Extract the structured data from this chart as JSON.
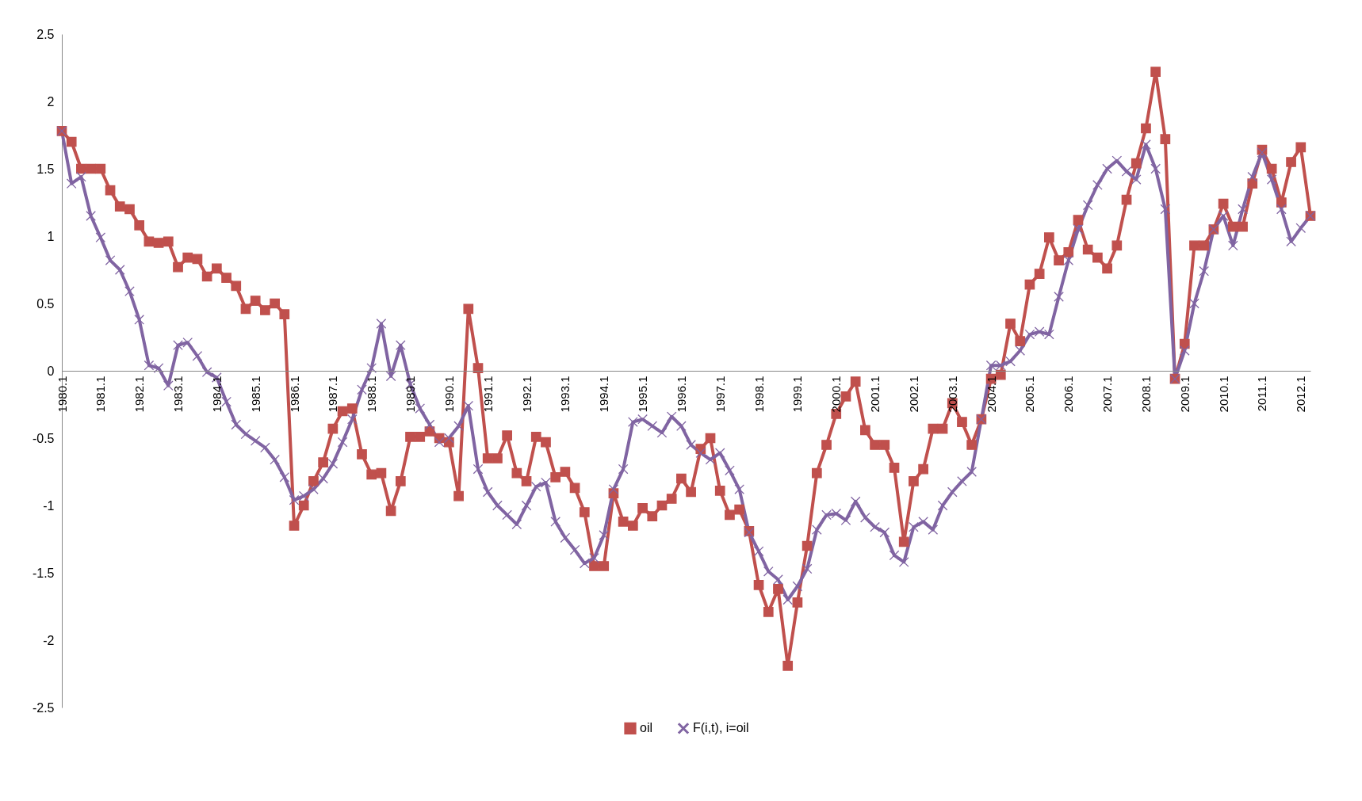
{
  "chart_data": {
    "type": "line",
    "categories": [
      "1980.1",
      null,
      null,
      null,
      "1981.1",
      null,
      null,
      null,
      "1982.1",
      null,
      null,
      null,
      "1983.1",
      null,
      null,
      null,
      "1984.1",
      null,
      null,
      null,
      "1985.1",
      null,
      null,
      null,
      "1986.1",
      null,
      null,
      null,
      "1987.1",
      null,
      null,
      null,
      "1988.1",
      null,
      null,
      null,
      "1989.1",
      null,
      null,
      null,
      "1990.1",
      null,
      null,
      null,
      "1991.1",
      null,
      null,
      null,
      "1992.1",
      null,
      null,
      null,
      "1993.1",
      null,
      null,
      null,
      "1994.1",
      null,
      null,
      null,
      "1995.1",
      null,
      null,
      null,
      "1996.1",
      null,
      null,
      null,
      "1997.1",
      null,
      null,
      null,
      "1998.1",
      null,
      null,
      null,
      "1999.1",
      null,
      null,
      null,
      "2000.1",
      null,
      null,
      null,
      "2001.1",
      null,
      null,
      null,
      "2002.1",
      null,
      null,
      null,
      "2003.1",
      null,
      null,
      null,
      "2004.1",
      null,
      null,
      null,
      "2005.1",
      null,
      null,
      null,
      "2006.1",
      null,
      null,
      null,
      "2007.1",
      null,
      null,
      null,
      "2008.1",
      null,
      null,
      null,
      "2009.1",
      null,
      null,
      null,
      "2010.1",
      null,
      null,
      null,
      "2011.1",
      null,
      null,
      null,
      "2012.1",
      null
    ],
    "series": [
      {
        "name": "oil",
        "color": "#c0504d",
        "marker": "square",
        "values": [
          1.78,
          1.7,
          1.5,
          1.5,
          1.5,
          1.34,
          1.22,
          1.2,
          1.08,
          0.96,
          0.95,
          0.96,
          0.77,
          0.84,
          0.83,
          0.7,
          0.76,
          0.69,
          0.63,
          0.46,
          0.52,
          0.45,
          0.5,
          0.42,
          -1.15,
          -1.0,
          -0.82,
          -0.68,
          -0.43,
          -0.3,
          -0.28,
          -0.62,
          -0.77,
          -0.76,
          -1.04,
          -0.82,
          -0.49,
          -0.49,
          -0.45,
          -0.5,
          -0.53,
          -0.93,
          0.46,
          0.02,
          -0.65,
          -0.65,
          -0.48,
          -0.76,
          -0.82,
          -0.49,
          -0.53,
          -0.79,
          -0.75,
          -0.87,
          -1.05,
          -1.45,
          -1.45,
          -0.91,
          -1.12,
          -1.15,
          -1.02,
          -1.08,
          -1.0,
          -0.95,
          -0.8,
          -0.9,
          -0.58,
          -0.5,
          -0.89,
          -1.07,
          -1.03,
          -1.19,
          -1.59,
          -1.79,
          -1.62,
          -2.19,
          -1.72,
          -1.3,
          -0.76,
          -0.55,
          -0.32,
          -0.19,
          -0.08,
          -0.44,
          -0.55,
          -0.55,
          -0.72,
          -1.27,
          -0.82,
          -0.73,
          -0.43,
          -0.43,
          -0.24,
          -0.38,
          -0.55,
          -0.36,
          -0.06,
          -0.03,
          0.35,
          0.22,
          0.64,
          0.72,
          0.99,
          0.82,
          0.88,
          1.12,
          0.9,
          0.84,
          0.76,
          0.93,
          1.27,
          1.54,
          1.8,
          2.22,
          1.72,
          -0.06,
          0.2,
          0.93,
          0.93,
          1.05,
          1.24,
          1.07,
          1.07,
          1.39,
          1.64,
          1.5,
          1.25,
          1.55,
          1.66,
          1.15
        ]
      },
      {
        "name": "F(i,t), i=oil",
        "color": "#8064a2",
        "marker": "cross",
        "values": [
          1.78,
          1.39,
          1.44,
          1.15,
          0.99,
          0.82,
          0.75,
          0.59,
          0.38,
          0.04,
          0.02,
          -0.11,
          0.19,
          0.21,
          0.11,
          -0.01,
          -0.05,
          -0.23,
          -0.4,
          -0.47,
          -0.52,
          -0.57,
          -0.66,
          -0.79,
          -0.96,
          -0.93,
          -0.88,
          -0.8,
          -0.69,
          -0.53,
          -0.36,
          -0.14,
          0.02,
          0.35,
          -0.04,
          0.19,
          -0.1,
          -0.28,
          -0.4,
          -0.53,
          -0.5,
          -0.41,
          -0.26,
          -0.73,
          -0.9,
          -1.0,
          -1.07,
          -1.14,
          -1.0,
          -0.86,
          -0.83,
          -1.12,
          -1.24,
          -1.33,
          -1.43,
          -1.39,
          -1.22,
          -0.88,
          -0.73,
          -0.38,
          -0.36,
          -0.41,
          -0.46,
          -0.34,
          -0.41,
          -0.55,
          -0.61,
          -0.66,
          -0.61,
          -0.74,
          -0.88,
          -1.2,
          -1.34,
          -1.49,
          -1.55,
          -1.7,
          -1.6,
          -1.47,
          -1.18,
          -1.07,
          -1.06,
          -1.11,
          -0.97,
          -1.09,
          -1.16,
          -1.2,
          -1.37,
          -1.42,
          -1.16,
          -1.12,
          -1.18,
          -1.0,
          -0.9,
          -0.82,
          -0.75,
          -0.36,
          0.04,
          0.04,
          0.07,
          0.15,
          0.27,
          0.29,
          0.27,
          0.55,
          0.82,
          1.05,
          1.23,
          1.38,
          1.5,
          1.56,
          1.48,
          1.42,
          1.68,
          1.5,
          1.2,
          -0.06,
          0.15,
          0.5,
          0.74,
          1.05,
          1.15,
          0.93,
          1.2,
          1.44,
          1.62,
          1.42,
          1.2,
          0.96,
          1.06,
          1.15
        ]
      }
    ],
    "ylim": [
      -2.5,
      2.5
    ],
    "yticks": [
      -2.5,
      -2,
      -1.5,
      -1,
      -0.5,
      0,
      0.5,
      1,
      1.5,
      2,
      2.5
    ],
    "grid": false,
    "legend": "bottom",
    "line_style": "solid"
  }
}
